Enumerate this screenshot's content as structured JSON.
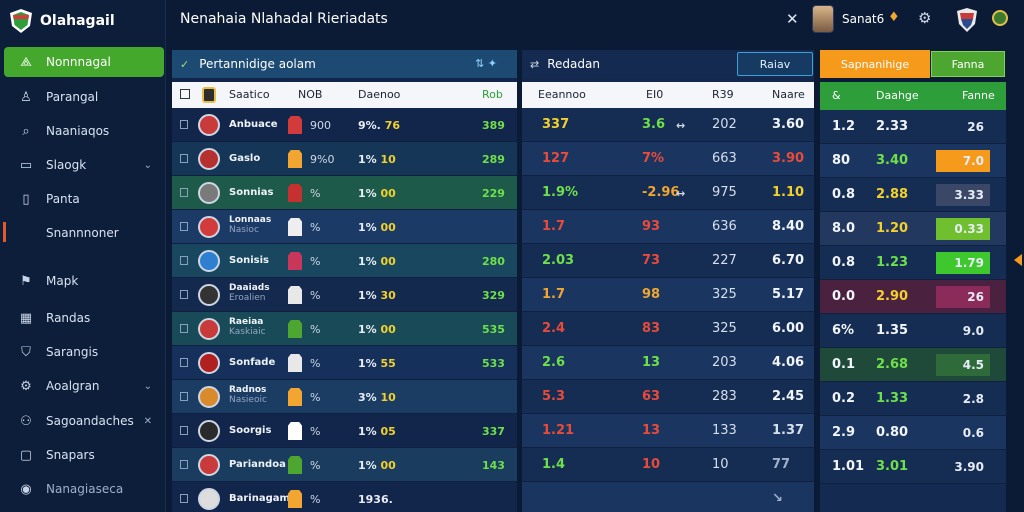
{
  "brand": {
    "name": "Olahagail"
  },
  "sidebar": {
    "items": [
      {
        "label": "Nonnnagal",
        "icon": "leaf-icon",
        "active": true
      },
      {
        "label": "Parangal",
        "icon": "person-icon"
      },
      {
        "label": "Naaniaqos",
        "icon": "search-icon"
      },
      {
        "label": "Slaogk",
        "icon": "grid-icon",
        "chevron": true
      },
      {
        "label": "Panta",
        "icon": "document-icon"
      },
      {
        "label": "Snannnoner",
        "icon": "marker-icon"
      },
      {
        "label": "Mapk",
        "icon": "flag-icon"
      },
      {
        "label": "Randas",
        "icon": "chart-icon"
      },
      {
        "label": "Sarangis",
        "icon": "shield-icon"
      },
      {
        "label": "Aoalgran",
        "icon": "settings-icon",
        "chevron": true
      },
      {
        "label": "Sagoandaches",
        "icon": "users-icon",
        "close": true
      },
      {
        "label": "Snapars",
        "icon": "chat-icon"
      },
      {
        "label": "Nanagiaseca",
        "icon": "user-circle-icon"
      }
    ]
  },
  "topbar": {
    "title": "Nenahaia Nlahadal Rieriadats",
    "close_icon": "close-icon",
    "user_name": "Sanat6"
  },
  "panel1": {
    "title": "Pertannidige aolam",
    "cols": {
      "team": "Saatico",
      "c1": "NOB",
      "c2": "Daenoo",
      "c3": "Rob"
    },
    "rows": [
      {
        "name": "Anbuace",
        "c1": "900",
        "c2": "9%.",
        "c2b": "76",
        "c3": "389",
        "ico": "#c93a3a",
        "kit": "#d23b3b"
      },
      {
        "name": "Gaslo",
        "c1": "9%0",
        "c2": "1%",
        "c2b": "10",
        "c3": "289",
        "ico": "#b73030",
        "kit": "#f2a531"
      },
      {
        "name": "Sonnias",
        "c1": "%",
        "c2": "1%",
        "c2b": "00",
        "c3": "229",
        "ico": "#7a7a7a",
        "kit": "#c53030"
      },
      {
        "name": "Lonnaas",
        "sub": "Nasioc",
        "c1": "%",
        "c2": "1%",
        "c2b": "00",
        "c3": "",
        "ico": "#d23b3b",
        "kit": "#eeeeee"
      },
      {
        "name": "Sonisis",
        "c1": "%",
        "c2": "1%",
        "c2b": "00",
        "c3": "280",
        "ico": "#2e7fd0",
        "kit": "#c8365a"
      },
      {
        "name": "Daaiads",
        "sub": "Eroalien",
        "c1": "%",
        "c2": "1%",
        "c2b": "30",
        "c3": "329",
        "ico": "#333333",
        "kit": "#e8e8e8"
      },
      {
        "name": "Raeiaa",
        "sub": "Kaskiaic",
        "c1": "%",
        "c2": "1%",
        "c2b": "00",
        "c3": "535",
        "ico": "#c93a3a",
        "kit": "#4da62f"
      },
      {
        "name": "Sonfade",
        "c1": "%",
        "c2": "1%",
        "c2b": "55",
        "c3": "533",
        "ico": "#b02020",
        "kit": "#e8e8e8"
      },
      {
        "name": "Radnos",
        "sub": "Nasieoic",
        "c1": "%",
        "c2": "3%",
        "c2b": "10",
        "c3": "",
        "ico": "#d98a2b",
        "kit": "#f2a531"
      },
      {
        "name": "Soorgis",
        "c1": "%",
        "c2": "1%",
        "c2b": "05",
        "c3": "337",
        "ico": "#2a2a2a",
        "kit": "#ffffff"
      },
      {
        "name": "Pariandoa",
        "c1": "%",
        "c2": "1%",
        "c2b": "00",
        "c3": "143",
        "ico": "#c93a3a",
        "kit": "#4da62f"
      },
      {
        "name": "Barinagam",
        "c1": "%",
        "c2": "1936.",
        "c2b": "",
        "c3": "",
        "ico": "#dddddd",
        "kit": "#f2a531"
      }
    ]
  },
  "panel2": {
    "title": "Redadan",
    "cols": {
      "a": "Eeannoo",
      "b": "EI0",
      "c": "R39",
      "d": "Naare"
    },
    "rows": [
      {
        "v1": "337",
        "v1c": "#f2d12e",
        "v2": "3.6",
        "v2c": "#6fe04a",
        "arrow": "↔",
        "v3": "202",
        "v4": "3.60",
        "v4c": "#f2f5fa"
      },
      {
        "v1": "127",
        "v1c": "#e84b3a",
        "v2": "7%",
        "v2c": "#e84b3a",
        "arrow": "",
        "v3": "663",
        "v4": "3.90",
        "v4c": "#e84b3a"
      },
      {
        "v1": "1.9%",
        "v1c": "#6fe04a",
        "v2": "-2.96",
        "v2c": "#f2a531",
        "arrow": "↔",
        "v3": "975",
        "v4": "1.10",
        "v4c": "#f2d12e"
      },
      {
        "v1": "1.7",
        "v1c": "#e84b3a",
        "v2": "93",
        "v2c": "#e84b3a",
        "arrow": "",
        "v3": "636",
        "v4": "8.40",
        "v4c": "#f2f5fa"
      },
      {
        "v1": "2.03",
        "v1c": "#6fe04a",
        "v2": "73",
        "v2c": "#e84b3a",
        "arrow": "",
        "v3": "227",
        "v4": "6.70",
        "v4c": "#f2f5fa"
      },
      {
        "v1": "1.7",
        "v1c": "#f2a531",
        "v2": "98",
        "v2c": "#f2a531",
        "arrow": "",
        "v3": "325",
        "v4": "5.17",
        "v4c": "#f2f5fa"
      },
      {
        "v1": "2.4",
        "v1c": "#e84b3a",
        "v2": "83",
        "v2c": "#e84b3a",
        "arrow": "",
        "v3": "325",
        "v4": "6.00",
        "v4c": "#f2f5fa"
      },
      {
        "v1": "2.6",
        "v1c": "#6fe04a",
        "v2": "13",
        "v2c": "#6fe04a",
        "arrow": "",
        "v3": "203",
        "v4": "4.06",
        "v4c": "#f2f5fa"
      },
      {
        "v1": "5.3",
        "v1c": "#e84b3a",
        "v2": "63",
        "v2c": "#e84b3a",
        "arrow": "",
        "v3": "283",
        "v4": "2.45",
        "v4c": "#f2f5fa"
      },
      {
        "v1": "1.21",
        "v1c": "#e84b3a",
        "v2": "13",
        "v2c": "#e84b3a",
        "arrow": "",
        "v3": "133",
        "v4": "1.37",
        "v4c": "#d6dfec"
      },
      {
        "v1": "1.4",
        "v1c": "#6fe04a",
        "v2": "10",
        "v2c": "#e84b3a",
        "arrow": "",
        "v3": "10",
        "v4": "77",
        "v4c": "#9fb0cc"
      },
      {
        "v1": "",
        "v1c": "#f2f5fa",
        "v2": "",
        "v2c": "#f2f5fa",
        "arrow": "",
        "v3": "",
        "v4": "↘",
        "v4c": "#9fb0cc"
      }
    ]
  },
  "buttons": {
    "filter": "Raiav",
    "orange": "Sapnanihige",
    "green": "Fanna"
  },
  "panel3": {
    "cols": {
      "a": "&",
      "b": "Daahge",
      "c": "Fanne"
    },
    "rows": [
      {
        "a": "1.2",
        "b": "2.33",
        "bc": "#f2f5fa",
        "c": "26",
        "box": ""
      },
      {
        "a": "80",
        "b": "3.40",
        "bc": "#6fe04a",
        "c": "7.0",
        "box": "#f59a1b"
      },
      {
        "a": "0.8",
        "b": "2.88",
        "bc": "#f2d12e",
        "c": "3.33",
        "box": "#3a4766"
      },
      {
        "a": "8.0",
        "b": "1.20",
        "bc": "#f2d12e",
        "c": "0.33",
        "box": "#6fbf2e"
      },
      {
        "a": "0.8",
        "b": "1.23",
        "bc": "#6fe04a",
        "c": "1.79",
        "box": "#3ec82e"
      },
      {
        "a": "0.0",
        "b": "2.90",
        "bc": "#f2d12e",
        "c": "26",
        "box": "#8b2b5a"
      },
      {
        "a": "6%",
        "b": "1.35",
        "bc": "#f2f5fa",
        "c": "9.0",
        "box": ""
      },
      {
        "a": "0.1",
        "b": "2.68",
        "bc": "#6fe04a",
        "c": "4.5",
        "box": "#2f6b3a"
      },
      {
        "a": "0.2",
        "b": "1.33",
        "bc": "#6fe04a",
        "c": "2.8",
        "box": ""
      },
      {
        "a": "2.9",
        "b": "0.80",
        "bc": "#f2f5fa",
        "c": "0.6",
        "box": ""
      },
      {
        "a": "1.01",
        "b": "3.01",
        "bc": "#6fe04a",
        "c": "3.90",
        "box": ""
      }
    ]
  }
}
